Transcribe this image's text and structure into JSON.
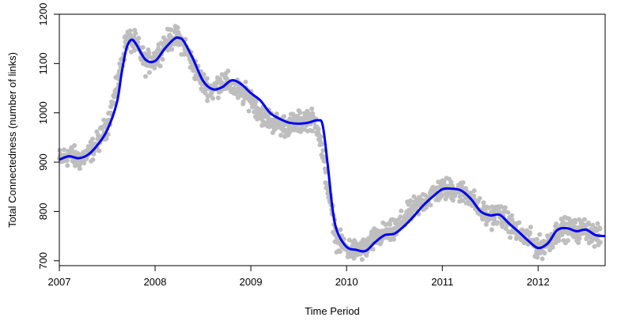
{
  "chart_data": {
    "type": "scatter",
    "title": "",
    "xlabel": "Time Period",
    "ylabel": "Total Connectedness (number of links)",
    "xlim": [
      2007.0,
      2012.7
    ],
    "ylim": [
      690,
      1200
    ],
    "xticks": [
      2007,
      2008,
      2009,
      2010,
      2011,
      2012
    ],
    "yticks": [
      700,
      800,
      900,
      1000,
      1100,
      1200
    ],
    "grid": false,
    "legend": "none",
    "point_color": "#bebebe",
    "line_color": "#0000ee",
    "series": [
      {
        "kind": "points",
        "x": [
          2007.0,
          2007.1,
          2007.2,
          2007.3,
          2007.4,
          2007.5,
          2007.6,
          2007.7,
          2007.8,
          2007.9,
          2008.0,
          2008.1,
          2008.2,
          2008.3,
          2008.4,
          2008.5,
          2008.6,
          2008.7,
          2008.8,
          2008.9,
          2009.0,
          2009.1,
          2009.2,
          2009.3,
          2009.4,
          2009.5,
          2009.6,
          2009.7,
          2009.8,
          2009.9,
          2010.0,
          2010.1,
          2010.2,
          2010.3,
          2010.4,
          2010.5,
          2010.6,
          2010.7,
          2010.8,
          2010.9,
          2011.0,
          2011.1,
          2011.2,
          2011.3,
          2011.4,
          2011.5,
          2011.6,
          2011.7,
          2011.8,
          2011.9,
          2012.0,
          2012.1,
          2012.2,
          2012.3,
          2012.4,
          2012.5,
          2012.6,
          2012.65
        ],
        "y": [
          905,
          915,
          905,
          915,
          940,
          975,
          1050,
          1150,
          1140,
          1100,
          1110,
          1140,
          1155,
          1140,
          1095,
          1060,
          1045,
          1065,
          1055,
          1040,
          1030,
          1000,
          985,
          975,
          975,
          980,
          990,
          975,
          850,
          740,
          725,
          720,
          725,
          745,
          755,
          760,
          785,
          805,
          820,
          835,
          845,
          845,
          840,
          830,
          800,
          790,
          795,
          775,
          755,
          745,
          725,
          735,
          760,
          765,
          760,
          765,
          750,
          745
        ]
      },
      {
        "kind": "smooth",
        "x": [
          2007.0,
          2007.1,
          2007.2,
          2007.3,
          2007.4,
          2007.5,
          2007.6,
          2007.65,
          2007.7,
          2007.75,
          2007.8,
          2007.9,
          2008.0,
          2008.1,
          2008.2,
          2008.25,
          2008.3,
          2008.4,
          2008.5,
          2008.6,
          2008.7,
          2008.8,
          2008.9,
          2009.0,
          2009.1,
          2009.2,
          2009.3,
          2009.4,
          2009.5,
          2009.6,
          2009.7,
          2009.75,
          2009.8,
          2009.85,
          2009.9,
          2010.0,
          2010.1,
          2010.2,
          2010.3,
          2010.4,
          2010.5,
          2010.6,
          2010.7,
          2010.8,
          2010.9,
          2011.0,
          2011.1,
          2011.2,
          2011.3,
          2011.4,
          2011.5,
          2011.6,
          2011.7,
          2011.8,
          2011.9,
          2012.0,
          2012.1,
          2012.2,
          2012.3,
          2012.4,
          2012.5,
          2012.6,
          2012.7
        ],
        "y": [
          905,
          912,
          908,
          915,
          935,
          965,
          1020,
          1080,
          1130,
          1148,
          1140,
          1108,
          1105,
          1130,
          1150,
          1152,
          1145,
          1108,
          1065,
          1048,
          1052,
          1066,
          1058,
          1040,
          1025,
          1000,
          988,
          980,
          978,
          980,
          985,
          975,
          900,
          810,
          760,
          728,
          722,
          720,
          738,
          752,
          755,
          770,
          790,
          812,
          830,
          845,
          846,
          842,
          825,
          800,
          792,
          793,
          775,
          758,
          740,
          726,
          735,
          762,
          766,
          760,
          763,
          752,
          750
        ]
      }
    ]
  }
}
